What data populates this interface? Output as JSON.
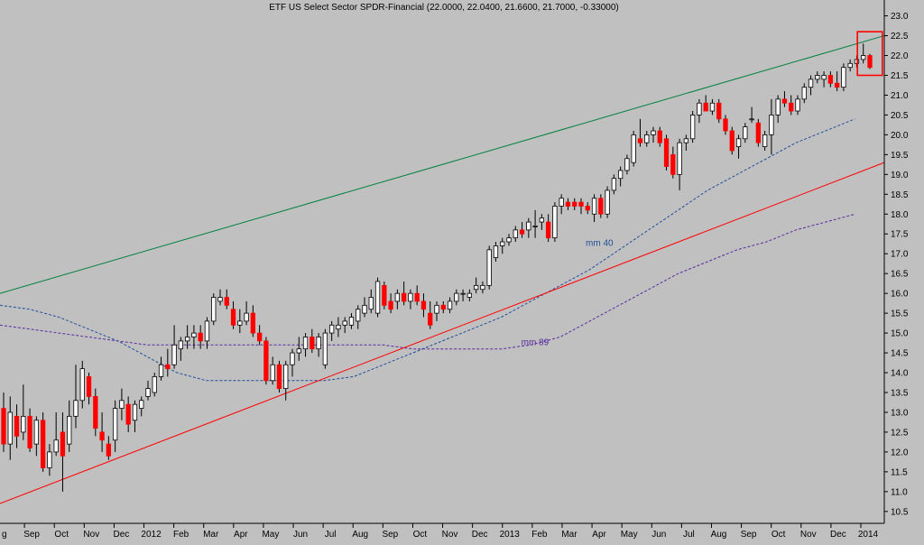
{
  "chart_data": {
    "type": "candlestick",
    "title": "ETF US Select Sector SPDR-Financial (22.0000, 22.0400, 21.6600, 21.7000, -0.33000)",
    "ylim": [
      10.2,
      23.4
    ],
    "y_ticks": [
      10.5,
      11.0,
      11.5,
      12.0,
      12.5,
      13.0,
      13.5,
      14.0,
      14.5,
      15.0,
      15.5,
      16.0,
      16.5,
      17.0,
      17.5,
      18.0,
      18.5,
      19.0,
      19.5,
      20.0,
      20.5,
      21.0,
      21.5,
      22.0,
      22.5,
      23.0
    ],
    "x_tick_labels": [
      "g",
      "Sep",
      "Oct",
      "Nov",
      "Dec",
      "2012",
      "Feb",
      "Mar",
      "Apr",
      "May",
      "Jun",
      "Jul",
      "Aug",
      "Sep",
      "Oct",
      "Nov",
      "Dec",
      "2013",
      "Feb",
      "Mar",
      "Apr",
      "May",
      "Jun",
      "Jul",
      "Aug",
      "Sep",
      "Oct",
      "Nov",
      "Dec",
      "2014"
    ],
    "grid": false,
    "colors": {
      "up": "#ffffff",
      "down": "#ff0000",
      "wick": "#000000",
      "background": "#c0c0c0",
      "upper_trend": "#008040",
      "lower_trend": "#ff0000",
      "ma40": "#1f4e99",
      "ma89": "#5a2aa0",
      "highlight_box": "#ff0000"
    },
    "candles": [
      [
        13.1,
        13.5,
        12.0,
        12.2
      ],
      [
        12.2,
        13.4,
        11.8,
        13.0
      ],
      [
        12.9,
        13.2,
        12.1,
        12.4
      ],
      [
        12.5,
        13.7,
        12.3,
        12.9
      ],
      [
        12.9,
        13.1,
        12.0,
        12.1
      ],
      [
        12.2,
        12.9,
        11.9,
        12.8
      ],
      [
        12.8,
        13.0,
        11.5,
        11.6
      ],
      [
        11.6,
        12.2,
        11.4,
        12.0
      ],
      [
        12.0,
        13.0,
        11.9,
        12.3
      ],
      [
        12.5,
        13.0,
        11.0,
        11.9
      ],
      [
        12.2,
        13.3,
        12.0,
        12.9
      ],
      [
        12.9,
        14.2,
        12.6,
        13.3
      ],
      [
        13.3,
        14.3,
        13.1,
        14.1
      ],
      [
        13.9,
        14.0,
        13.2,
        13.4
      ],
      [
        13.4,
        13.6,
        12.4,
        12.6
      ],
      [
        12.5,
        13.0,
        12.0,
        12.3
      ],
      [
        12.2,
        12.4,
        11.8,
        11.9
      ],
      [
        12.3,
        13.3,
        12.0,
        13.1
      ],
      [
        13.1,
        13.6,
        12.8,
        13.3
      ],
      [
        13.2,
        13.4,
        12.5,
        12.7
      ],
      [
        12.8,
        13.3,
        12.5,
        13.2
      ],
      [
        13.1,
        13.4,
        12.9,
        13.3
      ],
      [
        13.4,
        13.8,
        13.3,
        13.6
      ],
      [
        13.5,
        14.0,
        13.4,
        13.9
      ],
      [
        13.9,
        14.4,
        13.8,
        14.2
      ],
      [
        14.2,
        14.6,
        13.9,
        14.1
      ],
      [
        14.2,
        15.2,
        14.1,
        14.7
      ],
      [
        14.6,
        14.9,
        14.3,
        14.8
      ],
      [
        14.8,
        15.2,
        14.6,
        14.9
      ],
      [
        14.9,
        15.2,
        14.6,
        15.0
      ],
      [
        15.0,
        15.2,
        14.6,
        14.8
      ],
      [
        14.8,
        15.4,
        14.6,
        15.3
      ],
      [
        15.3,
        16.0,
        15.2,
        15.9
      ],
      [
        15.8,
        16.1,
        15.7,
        15.9
      ],
      [
        15.9,
        16.1,
        15.6,
        15.7
      ],
      [
        15.6,
        15.8,
        15.1,
        15.2
      ],
      [
        15.2,
        15.6,
        15.0,
        15.3
      ],
      [
        15.3,
        15.8,
        15.2,
        15.5
      ],
      [
        15.5,
        15.7,
        14.9,
        15.0
      ],
      [
        15.0,
        15.2,
        14.7,
        14.8
      ],
      [
        14.8,
        14.9,
        13.7,
        13.8
      ],
      [
        13.8,
        14.4,
        13.7,
        14.2
      ],
      [
        14.2,
        14.3,
        13.5,
        13.6
      ],
      [
        13.6,
        14.3,
        13.3,
        14.2
      ],
      [
        14.2,
        14.6,
        13.9,
        14.5
      ],
      [
        14.5,
        14.9,
        14.3,
        14.6
      ],
      [
        14.6,
        15.0,
        14.4,
        14.9
      ],
      [
        14.9,
        15.1,
        14.5,
        14.6
      ],
      [
        14.6,
        15.0,
        14.4,
        14.9
      ],
      [
        14.2,
        15.1,
        14.1,
        15.0
      ],
      [
        15.0,
        15.3,
        14.8,
        15.2
      ],
      [
        15.1,
        15.4,
        14.9,
        15.2
      ],
      [
        15.2,
        15.4,
        15.0,
        15.3
      ],
      [
        15.2,
        15.5,
        15.1,
        15.4
      ],
      [
        15.3,
        15.7,
        15.1,
        15.6
      ],
      [
        15.5,
        15.9,
        15.4,
        15.7
      ],
      [
        15.6,
        16.1,
        15.5,
        15.9
      ],
      [
        15.5,
        16.4,
        15.4,
        16.3
      ],
      [
        16.2,
        16.3,
        15.6,
        15.7
      ],
      [
        15.8,
        16.0,
        15.5,
        15.6
      ],
      [
        15.8,
        16.1,
        15.6,
        16.0
      ],
      [
        16.0,
        16.3,
        15.7,
        15.8
      ],
      [
        15.8,
        16.1,
        15.6,
        16.0
      ],
      [
        16.0,
        16.2,
        15.7,
        15.8
      ],
      [
        15.8,
        16.0,
        15.4,
        15.6
      ],
      [
        15.5,
        15.8,
        15.1,
        15.2
      ],
      [
        15.5,
        15.8,
        15.3,
        15.7
      ],
      [
        15.7,
        15.8,
        15.5,
        15.6
      ],
      [
        15.6,
        15.9,
        15.5,
        15.8
      ],
      [
        15.8,
        16.1,
        15.7,
        16.0
      ],
      [
        16.0,
        16.1,
        15.8,
        16.0
      ],
      [
        15.9,
        16.1,
        15.8,
        16.0
      ],
      [
        16.1,
        16.4,
        16.0,
        16.2
      ],
      [
        16.1,
        16.3,
        16.0,
        16.2
      ],
      [
        16.2,
        17.2,
        16.1,
        17.1
      ],
      [
        16.9,
        17.3,
        16.8,
        17.2
      ],
      [
        17.2,
        17.4,
        17.0,
        17.3
      ],
      [
        17.3,
        17.5,
        17.2,
        17.4
      ],
      [
        17.4,
        17.7,
        17.3,
        17.6
      ],
      [
        17.6,
        17.8,
        17.4,
        17.5
      ],
      [
        17.6,
        17.9,
        17.4,
        17.8
      ],
      [
        17.7,
        18.1,
        17.4,
        17.7
      ],
      [
        17.8,
        18.0,
        17.6,
        17.9
      ],
      [
        17.8,
        18.0,
        17.3,
        17.4
      ],
      [
        17.4,
        18.3,
        17.3,
        18.2
      ],
      [
        18.2,
        18.5,
        18.0,
        18.4
      ],
      [
        18.3,
        18.4,
        18.1,
        18.2
      ],
      [
        18.3,
        18.4,
        18.1,
        18.2
      ],
      [
        18.3,
        18.4,
        18.0,
        18.2
      ],
      [
        18.2,
        18.3,
        18.0,
        18.1
      ],
      [
        18.0,
        18.5,
        17.8,
        18.4
      ],
      [
        18.4,
        18.5,
        17.9,
        18.0
      ],
      [
        18.0,
        18.7,
        17.9,
        18.6
      ],
      [
        18.6,
        19.0,
        18.5,
        18.9
      ],
      [
        18.9,
        19.2,
        18.7,
        19.1
      ],
      [
        19.1,
        19.5,
        19.0,
        19.4
      ],
      [
        19.3,
        20.1,
        19.2,
        20.0
      ],
      [
        19.9,
        20.4,
        19.7,
        19.8
      ],
      [
        19.8,
        20.1,
        19.7,
        20.0
      ],
      [
        20.0,
        20.2,
        19.8,
        20.1
      ],
      [
        20.1,
        20.2,
        19.7,
        19.8
      ],
      [
        19.9,
        20.0,
        19.1,
        19.2
      ],
      [
        19.5,
        19.7,
        18.9,
        19.0
      ],
      [
        19.0,
        19.9,
        18.6,
        19.8
      ],
      [
        19.8,
        20.0,
        19.6,
        19.9
      ],
      [
        19.9,
        20.6,
        19.8,
        20.5
      ],
      [
        20.5,
        20.9,
        20.3,
        20.8
      ],
      [
        20.8,
        21.0,
        20.6,
        20.6
      ],
      [
        20.6,
        20.9,
        20.5,
        20.8
      ],
      [
        20.8,
        20.9,
        20.3,
        20.4
      ],
      [
        20.4,
        20.5,
        20.0,
        20.1
      ],
      [
        20.1,
        20.2,
        19.5,
        19.6
      ],
      [
        19.7,
        20.0,
        19.4,
        19.9
      ],
      [
        19.9,
        20.3,
        19.8,
        20.2
      ],
      [
        20.4,
        20.7,
        20.3,
        20.4
      ],
      [
        20.3,
        20.4,
        19.7,
        19.8
      ],
      [
        19.7,
        20.1,
        19.6,
        20.0
      ],
      [
        20.0,
        20.9,
        19.5,
        20.5
      ],
      [
        20.5,
        21.0,
        20.3,
        20.9
      ],
      [
        20.9,
        21.1,
        20.7,
        20.8
      ],
      [
        20.8,
        21.0,
        20.5,
        20.6
      ],
      [
        20.6,
        21.0,
        20.5,
        20.9
      ],
      [
        20.9,
        21.3,
        20.8,
        21.2
      ],
      [
        21.2,
        21.5,
        21.0,
        21.4
      ],
      [
        21.4,
        21.6,
        21.3,
        21.5
      ],
      [
        21.4,
        21.6,
        21.2,
        21.5
      ],
      [
        21.5,
        21.6,
        21.2,
        21.3
      ],
      [
        21.3,
        21.6,
        21.1,
        21.2
      ],
      [
        21.2,
        21.8,
        21.1,
        21.7
      ],
      [
        21.7,
        21.9,
        21.6,
        21.8
      ],
      [
        21.8,
        22.0,
        21.7,
        21.9
      ],
      [
        21.9,
        22.3,
        21.8,
        22.0
      ],
      [
        22.0,
        22.04,
        21.66,
        21.7
      ]
    ],
    "series": [
      {
        "kind": "dashed-line",
        "name": "mm 40",
        "color": "#1f4e99",
        "values": [
          15.7,
          15.6,
          15.4,
          15.1,
          14.8,
          14.4,
          14.0,
          13.8,
          13.8,
          13.8,
          13.8,
          13.8,
          13.9,
          14.2,
          14.5,
          14.8,
          15.1,
          15.4,
          15.8,
          16.2,
          16.6,
          17.1,
          17.6,
          18.1,
          18.6,
          19.0,
          19.4,
          19.8,
          20.1,
          20.4
        ],
        "label_at": [
          40.0,
          17.2
        ]
      },
      {
        "kind": "dashed-line",
        "name": "mm 89",
        "color": "#5a2aa0",
        "values": [
          15.2,
          15.1,
          15.0,
          14.9,
          14.8,
          14.7,
          14.7,
          14.7,
          14.7,
          14.7,
          14.7,
          14.7,
          14.7,
          14.7,
          14.6,
          14.6,
          14.6,
          14.6,
          14.7,
          14.9,
          15.3,
          15.7,
          16.1,
          16.5,
          16.8,
          17.1,
          17.3,
          17.6,
          17.8,
          18.0
        ],
        "label_at": [
          35.6,
          14.7
        ]
      },
      {
        "kind": "trend-line",
        "name": "",
        "color": "#008040",
        "from": [
          0,
          16.0
        ],
        "to": [
          60.4,
          22.5
        ]
      },
      {
        "kind": "trend-line",
        "name": "",
        "color": "#ff0000",
        "from": [
          0,
          10.7
        ],
        "to": [
          60.4,
          19.3
        ]
      }
    ],
    "x_range": [
      0,
      60.4
    ],
    "highlight": {
      "from_candle": 131,
      "to_candle": 133,
      "y_top": 22.6,
      "y_bottom": 21.5
    }
  }
}
